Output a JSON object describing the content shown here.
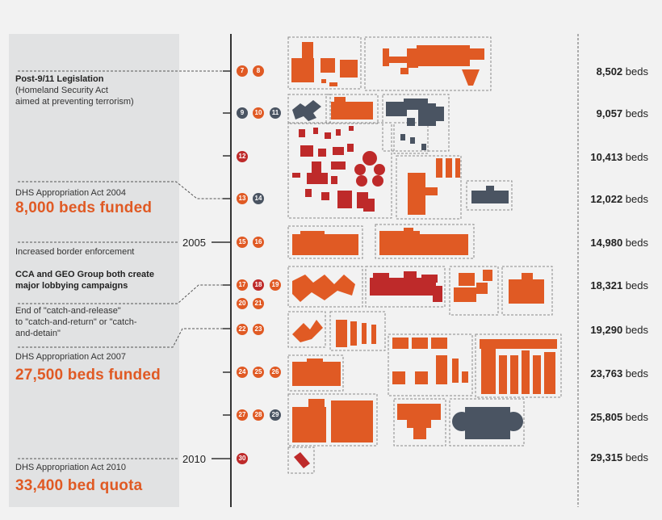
{
  "colors": {
    "orange": "#e05a24",
    "red": "#be2a2a",
    "slate": "#4a5462",
    "panel": "#e1e2e3"
  },
  "events": {
    "post911_title": "Post-9/11 Legislation",
    "post911_l1": "(Homeland Security Act",
    "post911_l2": "aimed at preventing terrorism)",
    "dhs2004": "DHS Appropriation Act 2004",
    "beds2004": "8,000 beds funded",
    "border": "Increased border enforcement",
    "lobby_l1": "CCA and GEO Group both create",
    "lobby_l2": "major lobbying campaigns",
    "catch_l1": "End of \"catch-and-release\"",
    "catch_l2": "to \"catch-and-return\" or \"catch-",
    "catch_l3": "and-detain\"",
    "dhs2007": "DHS Appropriation Act 2007",
    "beds2007": "27,500 beds funded",
    "dhs2010": "DHS Appropriation Act 2010",
    "beds2010": "33,400 bed quota"
  },
  "years": {
    "y2005": "2005",
    "y2010": "2010"
  },
  "badges": [
    {
      "n": "7",
      "c": "orange"
    },
    {
      "n": "8",
      "c": "orange"
    },
    {
      "n": "9",
      "c": "slate"
    },
    {
      "n": "10",
      "c": "orange"
    },
    {
      "n": "11",
      "c": "slate"
    },
    {
      "n": "12",
      "c": "red"
    },
    {
      "n": "13",
      "c": "orange"
    },
    {
      "n": "14",
      "c": "slate"
    },
    {
      "n": "15",
      "c": "orange"
    },
    {
      "n": "16",
      "c": "orange"
    },
    {
      "n": "17",
      "c": "orange"
    },
    {
      "n": "18",
      "c": "red"
    },
    {
      "n": "19",
      "c": "orange"
    },
    {
      "n": "20",
      "c": "orange"
    },
    {
      "n": "21",
      "c": "orange"
    },
    {
      "n": "22",
      "c": "orange"
    },
    {
      "n": "23",
      "c": "orange"
    },
    {
      "n": "24",
      "c": "orange"
    },
    {
      "n": "25",
      "c": "orange"
    },
    {
      "n": "26",
      "c": "orange"
    },
    {
      "n": "27",
      "c": "orange"
    },
    {
      "n": "28",
      "c": "orange"
    },
    {
      "n": "29",
      "c": "slate"
    },
    {
      "n": "30",
      "c": "red"
    }
  ],
  "beds": [
    {
      "value": "8,502",
      "unit": "beds"
    },
    {
      "value": "9,057",
      "unit": "beds"
    },
    {
      "value": "10,413",
      "unit": "beds"
    },
    {
      "value": "12,022",
      "unit": "beds"
    },
    {
      "value": "14,980",
      "unit": "beds"
    },
    {
      "value": "18,321",
      "unit": "beds"
    },
    {
      "value": "19,290",
      "unit": "beds"
    },
    {
      "value": "23,763",
      "unit": "beds"
    },
    {
      "value": "25,805",
      "unit": "beds"
    },
    {
      "value": "29,315",
      "unit": "beds"
    }
  ]
}
